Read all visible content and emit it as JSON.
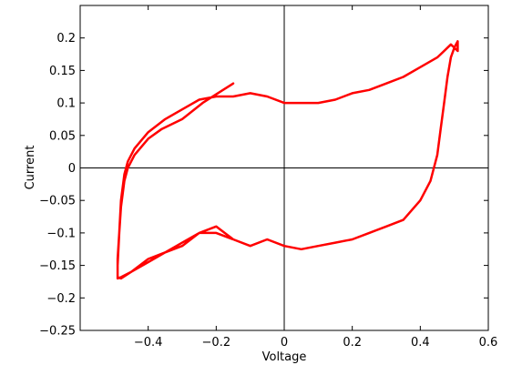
{
  "chart_data": {
    "type": "line",
    "title": "",
    "xlabel": "Voltage",
    "ylabel": "Current",
    "xlim": [
      -0.6,
      0.6
    ],
    "ylim": [
      -0.25,
      0.25
    ],
    "xticks": [
      -0.4,
      -0.2,
      0,
      0.2,
      0.4,
      0.6
    ],
    "xtick_labels": [
      "−0.4",
      "−0.2",
      "0",
      "0.2",
      "0.4",
      "0.6"
    ],
    "yticks": [
      -0.25,
      -0.2,
      -0.15,
      -0.1,
      -0.05,
      0,
      0.05,
      0.1,
      0.15,
      0.2
    ],
    "ytick_labels": [
      "−0.25",
      "−0.2",
      "−0.15",
      "−0.1",
      "−0.05",
      "0",
      "0.05",
      "0.1",
      "0.15",
      "0.2"
    ],
    "grid": false,
    "zero_lines": true,
    "series": [
      {
        "color": "#ff0000",
        "x": [
          -0.15,
          -0.18,
          -0.24,
          -0.3,
          -0.36,
          -0.4,
          -0.44,
          -0.46,
          -0.47,
          -0.48,
          -0.485,
          -0.49,
          -0.49,
          -0.49,
          -0.49,
          -0.48,
          -0.45,
          -0.4,
          -0.35,
          -0.3,
          -0.25,
          -0.2,
          -0.15,
          -0.1,
          -0.05,
          0.0,
          0.05,
          0.1,
          0.15,
          0.2,
          0.25,
          0.3,
          0.35,
          0.4,
          0.43,
          0.45,
          0.46,
          0.47,
          0.48,
          0.49,
          0.5,
          0.505,
          0.51,
          0.51,
          0.51,
          0.5,
          0.49,
          0.47,
          0.45,
          0.4,
          0.35,
          0.3,
          0.25,
          0.2,
          0.15,
          0.1,
          0.05,
          0.0,
          -0.05,
          -0.1,
          -0.15,
          -0.2,
          -0.25,
          -0.3,
          -0.35,
          -0.4,
          -0.44,
          -0.46,
          -0.47,
          -0.48,
          -0.485,
          -0.49,
          -0.49,
          -0.48,
          -0.45,
          -0.4,
          -0.35,
          -0.3,
          -0.25,
          -0.2,
          -0.15
        ],
        "y": [
          0.13,
          0.12,
          0.1,
          0.075,
          0.06,
          0.045,
          0.02,
          0.0,
          -0.02,
          -0.06,
          -0.1,
          -0.14,
          -0.16,
          -0.17,
          -0.168,
          -0.17,
          -0.16,
          -0.14,
          -0.13,
          -0.115,
          -0.1,
          -0.09,
          -0.11,
          -0.12,
          -0.11,
          -0.12,
          -0.125,
          -0.12,
          -0.115,
          -0.11,
          -0.1,
          -0.09,
          -0.08,
          -0.05,
          -0.02,
          0.02,
          0.06,
          0.1,
          0.14,
          0.17,
          0.185,
          0.19,
          0.195,
          0.19,
          0.18,
          0.185,
          0.19,
          0.18,
          0.17,
          0.155,
          0.14,
          0.13,
          0.12,
          0.115,
          0.105,
          0.1,
          0.1,
          0.1,
          0.11,
          0.115,
          0.11,
          0.11,
          0.105,
          0.09,
          0.075,
          0.055,
          0.03,
          0.01,
          -0.01,
          -0.05,
          -0.1,
          -0.15,
          -0.17,
          -0.168,
          -0.16,
          -0.145,
          -0.13,
          -0.12,
          -0.1,
          -0.1,
          -0.11
        ]
      }
    ]
  }
}
